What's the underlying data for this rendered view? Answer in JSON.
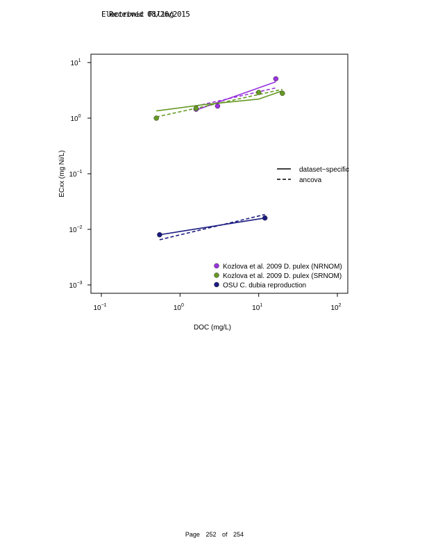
{
  "header": {
    "line1": "Electronic Filing",
    "line2": "Received 08/26/2015"
  },
  "footer": {
    "page_label": "Page",
    "page_number": "252",
    "of_label": "of",
    "total_pages": "254"
  },
  "chart_data": {
    "type": "line",
    "title": "",
    "xlabel": "DOC (mg/L)",
    "ylabel": "ECxx (mg Ni/L)",
    "xscale": "log",
    "yscale": "log",
    "xlim": [
      0.1,
      100
    ],
    "ylim": [
      0.001,
      10
    ],
    "x_ticks": [
      {
        "value": 0.1,
        "base": "10",
        "exp": "−1"
      },
      {
        "value": 1,
        "base": "10",
        "exp": "0"
      },
      {
        "value": 10,
        "base": "10",
        "exp": "1"
      },
      {
        "value": 100,
        "base": "10",
        "exp": "2"
      }
    ],
    "y_ticks": [
      {
        "value": 0.001,
        "base": "10",
        "exp": "−3"
      },
      {
        "value": 0.01,
        "base": "10",
        "exp": "−2"
      },
      {
        "value": 0.1,
        "base": "10",
        "exp": "−1"
      },
      {
        "value": 1,
        "base": "10",
        "exp": "0"
      },
      {
        "value": 10,
        "base": "10",
        "exp": "1"
      }
    ],
    "grid": false,
    "line_legend": {
      "placement": "right",
      "entries": [
        {
          "label": "dataset−specific",
          "style": "solid"
        },
        {
          "label": "ancova",
          "style": "dashed"
        }
      ]
    },
    "legend_placement": "bottom-right",
    "series": [
      {
        "name": "Kozlova et al. 2009 D. pulex (NRNOM)",
        "color": "#9933dd",
        "points": [
          [
            1.6,
            1.45
          ],
          [
            3.0,
            1.65
          ],
          [
            16.5,
            5.1
          ]
        ],
        "fit_dataset_specific": [
          [
            1.6,
            1.4
          ],
          [
            16.5,
            4.5
          ]
        ],
        "fit_ancova": [
          [
            1.6,
            1.65
          ],
          [
            16.5,
            3.5
          ]
        ]
      },
      {
        "name": "Kozlova et al. 2009 D. pulex (SRNOM)",
        "color": "#669922",
        "points": [
          [
            0.5,
            1.0
          ],
          [
            1.6,
            1.5
          ],
          [
            10.0,
            2.9
          ],
          [
            20.0,
            2.8
          ]
        ],
        "fit_dataset_specific": [
          [
            0.5,
            1.35
          ],
          [
            2.0,
            1.75
          ],
          [
            10.0,
            2.2
          ],
          [
            20.0,
            3.1
          ]
        ],
        "fit_ancova": [
          [
            0.5,
            1.05
          ],
          [
            20.0,
            3.3
          ]
        ]
      },
      {
        "name": "OSU C. dubia reproduction",
        "color": "#1a1a80",
        "points": [
          [
            0.55,
            0.008
          ],
          [
            12.0,
            0.016
          ]
        ],
        "fit_dataset_specific": [
          [
            0.55,
            0.008
          ],
          [
            12.0,
            0.016
          ]
        ],
        "fit_ancova": [
          [
            0.55,
            0.0065
          ],
          [
            12.0,
            0.0185
          ]
        ]
      }
    ]
  }
}
